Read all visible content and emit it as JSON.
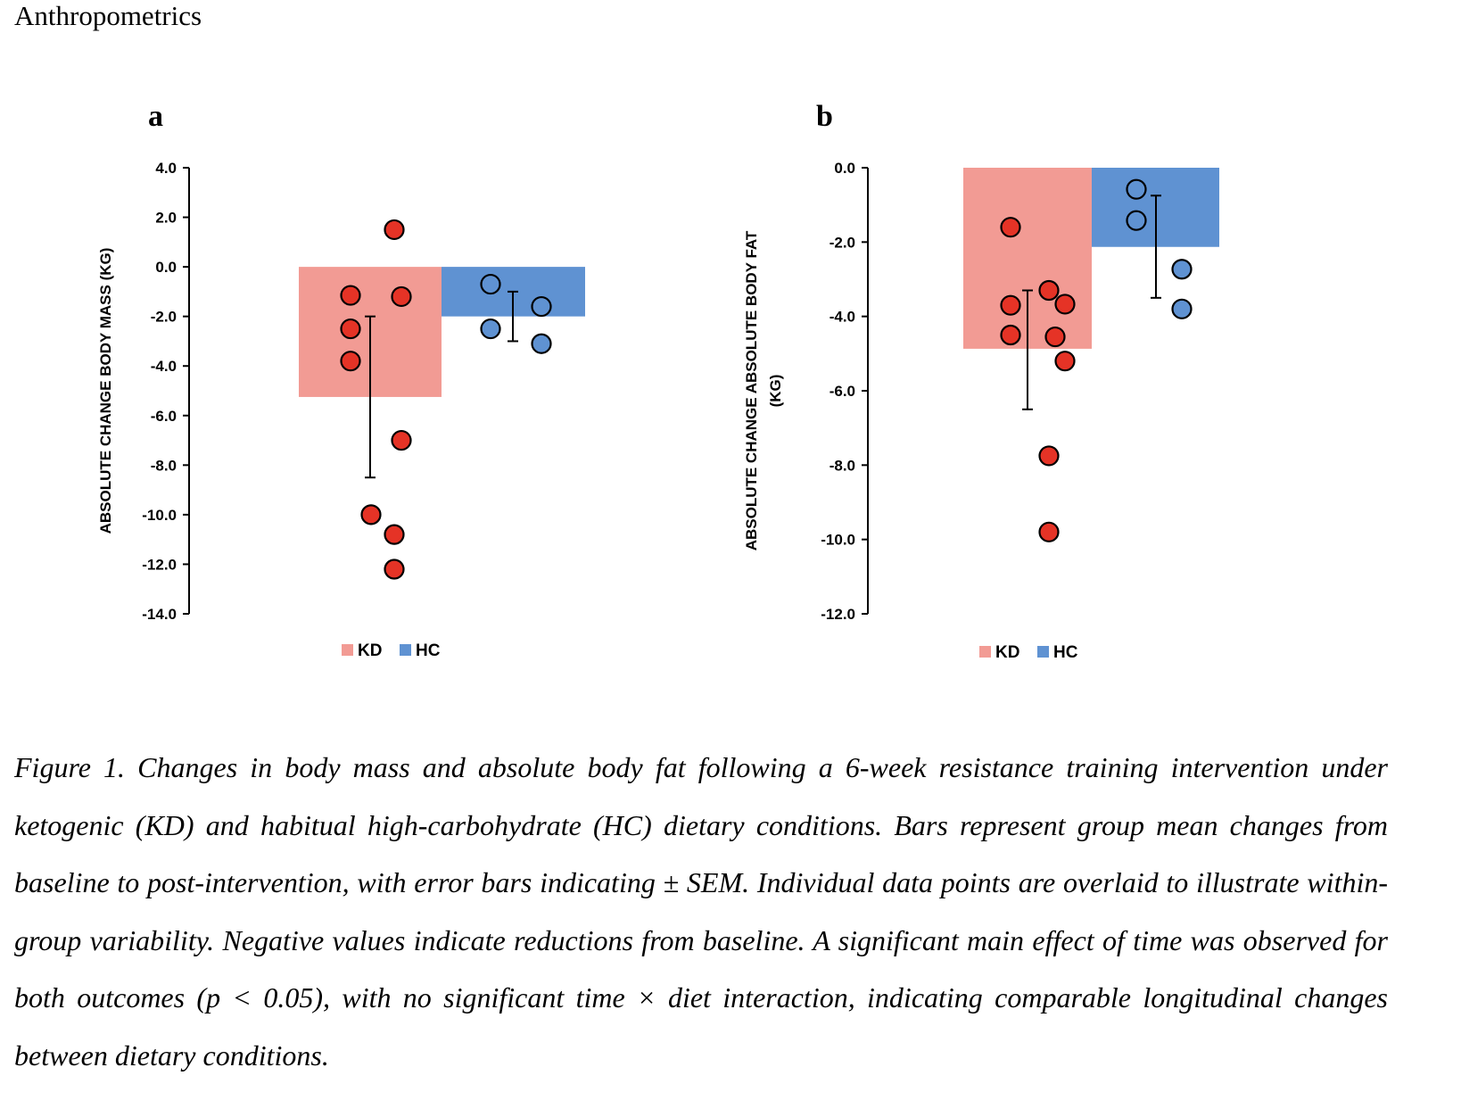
{
  "section_title": "Anthropometrics",
  "chart_data": [
    {
      "panel": "a",
      "type": "bar",
      "title": "",
      "ylabel": "ABSOLUTE CHANGE BODY MASS  (KG)",
      "xlabel": "",
      "ylim": [
        -14.0,
        4.0
      ],
      "yticks": [
        "4.0",
        "2.0",
        "0.0",
        "-2.0",
        "-4.0",
        "-6.0",
        "-8.0",
        "-10.0",
        "-12.0",
        "-14.0"
      ],
      "ytick_values": [
        4,
        2,
        0,
        -2,
        -4,
        -6,
        -8,
        -10,
        -12,
        -14
      ],
      "grid": false,
      "legend_position": "bottom",
      "categories": [
        "KD",
        "HC"
      ],
      "series": [
        {
          "name": "KD",
          "color": "#f29b94",
          "mean": -5.25,
          "error_low": -8.5,
          "error_high": -2.0,
          "points": [
            {
              "offset": "right",
              "value": 1.5,
              "style": "filled"
            },
            {
              "offset": "left",
              "value": -1.15,
              "style": "filled"
            },
            {
              "offset": "right",
              "value": -1.2,
              "style": "filled"
            },
            {
              "offset": "left",
              "value": -2.5,
              "style": "filled"
            },
            {
              "offset": "left",
              "value": -3.8,
              "style": "filled"
            },
            {
              "offset": "right",
              "value": -7.0,
              "style": "filled"
            },
            {
              "offset": "center",
              "value": -10.0,
              "style": "filled"
            },
            {
              "offset": "right-mid",
              "value": -10.8,
              "style": "filled"
            },
            {
              "offset": "right-mid",
              "value": -12.2,
              "style": "filled"
            }
          ],
          "point_color": "#e53326"
        },
        {
          "name": "HC",
          "color": "#5f92d2",
          "mean": -2.0,
          "error_low": -3.0,
          "error_high": -1.0,
          "points": [
            {
              "offset": "left",
              "value": -0.7,
              "style": "open"
            },
            {
              "offset": "left",
              "value": -2.5,
              "style": "filled"
            },
            {
              "offset": "right",
              "value": -1.6,
              "style": "open"
            },
            {
              "offset": "right",
              "value": -3.1,
              "style": "filled"
            }
          ],
          "point_color": "#5f92d2"
        }
      ]
    },
    {
      "panel": "b",
      "type": "bar",
      "title": "",
      "ylabel": "ABSOLUTE CHANGE ABSOLUTE BODY FAT",
      "ylabel_line2": "(KG)",
      "xlabel": "",
      "ylim": [
        -12.0,
        0.0
      ],
      "yticks": [
        "0.0",
        "-2.0",
        "-4.0",
        "-6.0",
        "-8.0",
        "-10.0",
        "-12.0"
      ],
      "ytick_values": [
        0,
        -2,
        -4,
        -6,
        -8,
        -10,
        -12
      ],
      "grid": false,
      "legend_position": "bottom",
      "categories": [
        "KD",
        "HC"
      ],
      "series": [
        {
          "name": "KD",
          "color": "#f29b94",
          "mean": -4.87,
          "error_low": -6.5,
          "error_high": -3.3,
          "points": [
            {
              "offset": "left",
              "value": -1.6,
              "style": "filled"
            },
            {
              "offset": "center-right",
              "value": -3.3,
              "style": "filled"
            },
            {
              "offset": "left",
              "value": -3.7,
              "style": "filled"
            },
            {
              "offset": "right",
              "value": -3.67,
              "style": "filled"
            },
            {
              "offset": "left",
              "value": -4.5,
              "style": "filled"
            },
            {
              "offset": "mid-right",
              "value": -4.55,
              "style": "filled"
            },
            {
              "offset": "right",
              "value": -5.2,
              "style": "filled"
            },
            {
              "offset": "center-right",
              "value": -7.75,
              "style": "filled"
            },
            {
              "offset": "center-right",
              "value": -9.8,
              "style": "filled"
            }
          ],
          "point_color": "#e53326"
        },
        {
          "name": "HC",
          "color": "#5f92d2",
          "mean": -2.13,
          "error_low": -3.5,
          "error_high": -0.75,
          "points": [
            {
              "offset": "left",
              "value": -0.58,
              "style": "open"
            },
            {
              "offset": "left",
              "value": -1.42,
              "style": "open"
            },
            {
              "offset": "right",
              "value": -2.73,
              "style": "filled"
            },
            {
              "offset": "right",
              "value": -3.8,
              "style": "filled"
            }
          ],
          "point_color": "#5f92d2"
        }
      ]
    }
  ],
  "panels": {
    "a_label": "a",
    "b_label": "b"
  },
  "legend": {
    "kd": "KD",
    "hc": "HC"
  },
  "caption": "Figure 1. Changes in body mass and absolute body fat following a 6-week resistance training intervention under ketogenic (KD) and habitual high-carbohydrate (HC) dietary conditions. Bars represent group mean changes from baseline to post-intervention, with error bars indicating ± SEM. Individual data points are overlaid to illustrate within-group variability. Negative values indicate reductions from baseline. A significant main effect of time was observed for both outcomes (p < 0.05), with no significant time × diet interaction, indicating comparable longitudinal changes between dietary conditions."
}
